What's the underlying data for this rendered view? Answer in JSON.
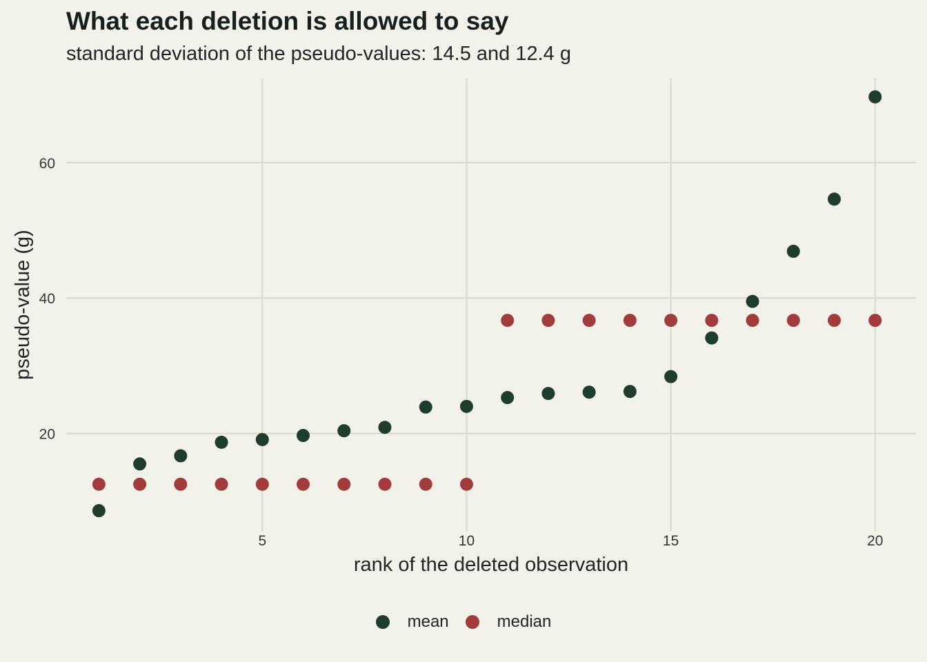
{
  "title": "What each deletion is allowed to say",
  "subtitle": "standard deviation of the pseudo-values: 14.5 and 12.4 g",
  "chart_data": {
    "type": "scatter",
    "title": "What each deletion is allowed to say",
    "subtitle": "standard deviation of the pseudo-values: 14.5 and 12.4 g",
    "xlabel": "rank of the deleted observation",
    "ylabel": "pseudo-value (g)",
    "xlim": [
      0.2,
      21
    ],
    "ylim": [
      5.5,
      72.5
    ],
    "xticks": [
      5,
      10,
      15,
      20
    ],
    "yticks": [
      20,
      40,
      60
    ],
    "grid": true,
    "legend_position": "bottom",
    "x": [
      1,
      2,
      3,
      4,
      5,
      6,
      7,
      8,
      9,
      10,
      11,
      12,
      13,
      14,
      15,
      16,
      17,
      18,
      19,
      20
    ],
    "series": [
      {
        "name": "mean",
        "color": "#1e3d2c",
        "values": [
          8.6,
          15.5,
          16.7,
          18.7,
          19.1,
          19.7,
          20.4,
          20.9,
          23.9,
          24.0,
          25.3,
          25.9,
          26.1,
          26.2,
          28.4,
          34.1,
          39.5,
          46.9,
          54.6,
          69.7
        ]
      },
      {
        "name": "median",
        "color": "#a23b3c",
        "values": [
          12.5,
          12.5,
          12.5,
          12.5,
          12.5,
          12.5,
          12.5,
          12.5,
          12.5,
          12.5,
          36.7,
          36.7,
          36.7,
          36.7,
          36.7,
          36.7,
          36.7,
          36.7,
          36.7,
          36.7
        ]
      }
    ]
  }
}
